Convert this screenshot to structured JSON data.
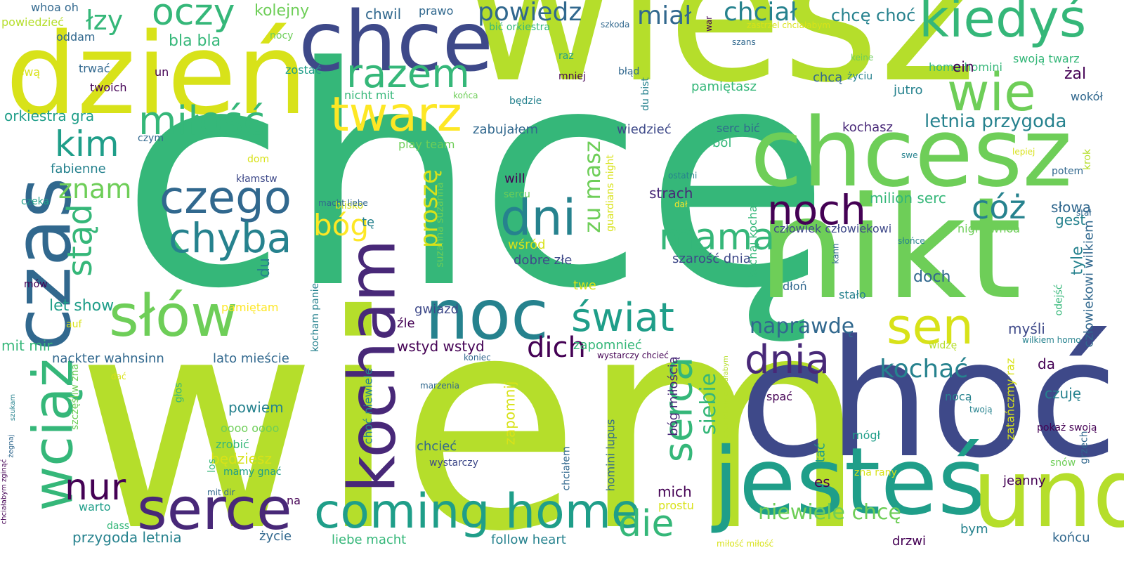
{
  "palette": [
    "#440154",
    "#482878",
    "#3e4989",
    "#31688e",
    "#26828e",
    "#1f9e89",
    "#35b779",
    "#6ece58",
    "#b5de2b",
    "#fde725"
  ],
  "words": [
    {
      "text": "chcę",
      "color": "#35b779"
    },
    {
      "text": "wiem",
      "color": "#b5de2b"
    },
    {
      "text": "wiesz",
      "color": "#b5de2b"
    },
    {
      "text": "nikt",
      "color": "#6ece58"
    },
    {
      "text": "choć",
      "color": "#3e4989"
    },
    {
      "text": "chcesz",
      "color": "#6ece58"
    },
    {
      "text": "dzień",
      "color": "#d8e219"
    },
    {
      "text": "czas",
      "color": "#31688e"
    },
    {
      "text": "chce",
      "color": "#3e4989"
    },
    {
      "text": "kocham",
      "color": "#482878"
    },
    {
      "text": "jesteś",
      "color": "#1f9e89"
    },
    {
      "text": "und",
      "color": "#b5de2b"
    },
    {
      "text": "noc",
      "color": "#26828e"
    },
    {
      "text": "serce",
      "color": "#482878"
    },
    {
      "text": "coming home",
      "color": "#1f9e89"
    },
    {
      "text": "wciąż",
      "color": "#35b779"
    },
    {
      "text": "słów",
      "color": "#6ece58"
    },
    {
      "text": "kiedyś",
      "color": "#35b779"
    },
    {
      "text": "wie",
      "color": "#6ece58"
    },
    {
      "text": "twarz",
      "color": "#fde725"
    },
    {
      "text": "razem",
      "color": "#35b779"
    },
    {
      "text": "dni",
      "color": "#26828e"
    },
    {
      "text": "czego",
      "color": "#31688e"
    },
    {
      "text": "chyba",
      "color": "#26828e"
    },
    {
      "text": "miłość",
      "color": "#35b779"
    },
    {
      "text": "oczy",
      "color": "#35b779"
    },
    {
      "text": "sen",
      "color": "#d8e219"
    },
    {
      "text": "świat",
      "color": "#1f9e89"
    },
    {
      "text": "noch",
      "color": "#440154"
    },
    {
      "text": "dnia",
      "color": "#482878"
    },
    {
      "text": "serca",
      "color": "#35b779"
    },
    {
      "text": "mama",
      "color": "#35b779"
    },
    {
      "text": "die",
      "color": "#35b779"
    },
    {
      "text": "nur",
      "color": "#440154"
    },
    {
      "text": "kim",
      "color": "#1f9e89"
    },
    {
      "text": "stąd",
      "color": "#35b779"
    },
    {
      "text": "cóż",
      "color": "#26828e"
    },
    {
      "text": "powiedz",
      "color": "#31688e"
    },
    {
      "text": "chciał",
      "color": "#26828e"
    },
    {
      "text": "miał",
      "color": "#31688e"
    },
    {
      "text": "łzy",
      "color": "#35b779"
    },
    {
      "text": "znam",
      "color": "#6ece58"
    },
    {
      "text": "bóg",
      "color": "#fde725"
    },
    {
      "text": "kochać",
      "color": "#26828e"
    },
    {
      "text": "dich",
      "color": "#440154"
    },
    {
      "text": "naprawdę",
      "color": "#31688e"
    },
    {
      "text": "zu masz",
      "color": "#6ece58"
    },
    {
      "text": "proszę",
      "color": "#d8e219"
    },
    {
      "text": "siebie",
      "color": "#35b779"
    },
    {
      "text": "niewiele chcę",
      "color": "#6ece58"
    },
    {
      "text": "letnia przygoda",
      "color": "#26828e"
    },
    {
      "text": "kolejny",
      "color": "#6ece58"
    },
    {
      "text": "bla bla",
      "color": "#35b779"
    },
    {
      "text": "chwil",
      "color": "#31688e"
    },
    {
      "text": "prawo",
      "color": "#31688e"
    },
    {
      "text": "chcę choć",
      "color": "#26828e"
    },
    {
      "text": "whoa oh",
      "color": "#31688e"
    },
    {
      "text": "powiedzieć",
      "color": "#b5de2b"
    },
    {
      "text": "oddam",
      "color": "#31688e"
    },
    {
      "text": "nocy",
      "color": "#6ece58"
    },
    {
      "text": "trwać",
      "color": "#31688e"
    },
    {
      "text": "un",
      "color": "#440154"
    },
    {
      "text": "swą",
      "color": "#d8e219"
    },
    {
      "text": "zostać",
      "color": "#1f9e89"
    },
    {
      "text": "twoich",
      "color": "#440154"
    },
    {
      "text": "orkiestra gra",
      "color": "#1f9e89"
    },
    {
      "text": "czym",
      "color": "#31688e"
    },
    {
      "text": "fabienne",
      "color": "#26828e"
    },
    {
      "text": "dom",
      "color": "#d8e219"
    },
    {
      "text": "kłamstw",
      "color": "#3e4989"
    },
    {
      "text": "czeka",
      "color": "#1f9e89"
    },
    {
      "text": "let show",
      "color": "#1f9e89"
    },
    {
      "text": "mów",
      "color": "#440154"
    },
    {
      "text": "auf",
      "color": "#d8e219"
    },
    {
      "text": "mit mir",
      "color": "#35b779"
    },
    {
      "text": "nackter wahnsinn",
      "color": "#31688e"
    },
    {
      "text": "lato mieście",
      "color": "#31688e"
    },
    {
      "text": "powiem",
      "color": "#26828e"
    },
    {
      "text": "oooo oooo",
      "color": "#6ece58"
    },
    {
      "text": "zrobić",
      "color": "#35b779"
    },
    {
      "text": "będziesz",
      "color": "#d8e219"
    },
    {
      "text": "mamy gnać",
      "color": "#1f9e89"
    },
    {
      "text": "mit dir",
      "color": "#31688e"
    },
    {
      "text": "na",
      "color": "#440154"
    },
    {
      "text": "warto",
      "color": "#1f9e89"
    },
    {
      "text": "dass",
      "color": "#35b779"
    },
    {
      "text": "przygoda letnia",
      "color": "#26828e"
    },
    {
      "text": "życie",
      "color": "#31688e"
    },
    {
      "text": "liebe macht",
      "color": "#35b779"
    },
    {
      "text": "follow heart",
      "color": "#26828e"
    },
    {
      "text": "bić orkiestra",
      "color": "#35b779"
    },
    {
      "text": "szkoda",
      "color": "#31688e"
    },
    {
      "text": "war",
      "color": "#440154"
    },
    {
      "text": "zastrzel chciałabym",
      "color": "#d8e219"
    },
    {
      "text": "szans",
      "color": "#31688e"
    },
    {
      "text": "raz",
      "color": "#1f9e89"
    },
    {
      "text": "błąd",
      "color": "#31688e"
    },
    {
      "text": "mniej",
      "color": "#440154"
    },
    {
      "text": "homo homini",
      "color": "#35b779"
    },
    {
      "text": "swoją twarz",
      "color": "#35b779"
    },
    {
      "text": "chcą",
      "color": "#31688e"
    },
    {
      "text": "keine",
      "color": "#6ece58"
    },
    {
      "text": "życiu",
      "color": "#26828e"
    },
    {
      "text": "ein",
      "color": "#440154"
    },
    {
      "text": "żal",
      "color": "#440154"
    },
    {
      "text": "pamiętasz",
      "color": "#35b779"
    },
    {
      "text": "jutro",
      "color": "#26828e"
    },
    {
      "text": "wokół",
      "color": "#31688e"
    },
    {
      "text": "nicht mit",
      "color": "#35b779"
    },
    {
      "text": "końca",
      "color": "#6ece58"
    },
    {
      "text": "zabujałem",
      "color": "#31688e"
    },
    {
      "text": "wiedzieć",
      "color": "#3e4989"
    },
    {
      "text": "serc bić",
      "color": "#31688e"
    },
    {
      "text": "kochasz",
      "color": "#482878"
    },
    {
      "text": "play team",
      "color": "#6ece58"
    },
    {
      "text": "ból",
      "color": "#35b779"
    },
    {
      "text": "guardians night",
      "color": "#d8e219"
    },
    {
      "text": "suzanna suzanna",
      "color": "#6ece58"
    },
    {
      "text": "będzie",
      "color": "#26828e"
    },
    {
      "text": "du bist",
      "color": "#26828e"
    },
    {
      "text": "lepiej",
      "color": "#d8e219"
    },
    {
      "text": "krok",
      "color": "#b5de2b"
    },
    {
      "text": "swe",
      "color": "#26828e"
    },
    {
      "text": "potem",
      "color": "#31688e"
    },
    {
      "text": "ostatni",
      "color": "#26828e"
    },
    {
      "text": "stał",
      "color": "#31688e"
    },
    {
      "text": "will",
      "color": "#440154"
    },
    {
      "text": "sercu",
      "color": "#6ece58"
    },
    {
      "text": "strach",
      "color": "#482878"
    },
    {
      "text": "dał",
      "color": "#fde725"
    },
    {
      "text": "milion serc",
      "color": "#35b779"
    },
    {
      "text": "słowa",
      "color": "#31688e"
    },
    {
      "text": "gest",
      "color": "#26828e"
    },
    {
      "text": "blisko",
      "color": "#d8e219"
    },
    {
      "text": "macht liebe",
      "color": "#31688e"
    },
    {
      "text": "tę",
      "color": "#26828e"
    },
    {
      "text": "człowiek człowiekowi",
      "color": "#3e4989"
    },
    {
      "text": "night whoa",
      "color": "#6ece58"
    },
    {
      "text": "słońce",
      "color": "#26828e"
    },
    {
      "text": "kochaj kochaj",
      "color": "#35b779"
    },
    {
      "text": "wśród",
      "color": "#d8e219"
    },
    {
      "text": "dobre złe",
      "color": "#3e4989"
    },
    {
      "text": "szarość dnia",
      "color": "#3e4989"
    },
    {
      "text": "kann",
      "color": "#31688e"
    },
    {
      "text": "tyle",
      "color": "#26828e"
    },
    {
      "text": "człowiekowi wilkiem",
      "color": "#31688e"
    },
    {
      "text": "du",
      "color": "#26828e"
    },
    {
      "text": "twe",
      "color": "#d8e219"
    },
    {
      "text": "dłoń",
      "color": "#31688e"
    },
    {
      "text": "stało",
      "color": "#26828e"
    },
    {
      "text": "doch",
      "color": "#31688e"
    },
    {
      "text": "pamiętam",
      "color": "#fde725"
    },
    {
      "text": "kocham panie",
      "color": "#26828e"
    },
    {
      "text": "gwiazd",
      "color": "#3e4989"
    },
    {
      "text": "źle",
      "color": "#440154"
    },
    {
      "text": "wstyd wstyd",
      "color": "#440154"
    },
    {
      "text": "zapomnieć",
      "color": "#35b779"
    },
    {
      "text": "myśli",
      "color": "#3e4989"
    },
    {
      "text": "odejść",
      "color": "#35b779"
    },
    {
      "text": "widzę",
      "color": "#b5de2b"
    },
    {
      "text": "wilkiem homo",
      "color": "#26828e"
    },
    {
      "text": "koniec",
      "color": "#31688e"
    },
    {
      "text": "wystarczy chcieć",
      "color": "#440154"
    },
    {
      "text": "chciałabym chciałabym",
      "color": "#b5de2b"
    },
    {
      "text": "bóg miłością",
      "color": "#482878"
    },
    {
      "text": "da",
      "color": "#440154"
    },
    {
      "text": "czuję",
      "color": "#26828e"
    },
    {
      "text": "zatańczmy raz",
      "color": "#d8e219"
    },
    {
      "text": "choć niewiele",
      "color": "#26828e"
    },
    {
      "text": "zapomnij",
      "color": "#d8e219"
    },
    {
      "text": "dać",
      "color": "#d8e219"
    },
    {
      "text": "marzenia",
      "color": "#31688e"
    },
    {
      "text": "spać",
      "color": "#440154"
    },
    {
      "text": "nocą",
      "color": "#26828e"
    },
    {
      "text": "twoją",
      "color": "#26828e"
    },
    {
      "text": "pokaż swoją",
      "color": "#440154"
    },
    {
      "text": "chcieć",
      "color": "#31688e"
    },
    {
      "text": "wystarczy",
      "color": "#3e4989"
    },
    {
      "text": "chciałem",
      "color": "#31688e"
    },
    {
      "text": "homini lupus",
      "color": "#31688e"
    },
    {
      "text": "stać",
      "color": "#1f9e89"
    },
    {
      "text": "mógł",
      "color": "#1f9e89"
    },
    {
      "text": "zna rany",
      "color": "#d8e219"
    },
    {
      "text": "snów",
      "color": "#6ece58"
    },
    {
      "text": "grzech",
      "color": "#31688e"
    },
    {
      "text": "mich",
      "color": "#440154"
    },
    {
      "text": "prostu",
      "color": "#d8e219"
    },
    {
      "text": "es",
      "color": "#440154"
    },
    {
      "text": "jeanny",
      "color": "#440154"
    },
    {
      "text": "los",
      "color": "#35b779"
    },
    {
      "text": "głos",
      "color": "#35b779"
    },
    {
      "text": "szczęśliw zna",
      "color": "#6ece58"
    },
    {
      "text": "szukam",
      "color": "#26828e"
    },
    {
      "text": "żegnaj",
      "color": "#31688e"
    },
    {
      "text": "chciałabym zginąć",
      "color": "#440154"
    },
    {
      "text": "drzwi",
      "color": "#440154"
    },
    {
      "text": "bym",
      "color": "#26828e"
    },
    {
      "text": "końcu",
      "color": "#31688e"
    },
    {
      "text": "miłość miłość",
      "color": "#d8e219"
    }
  ]
}
